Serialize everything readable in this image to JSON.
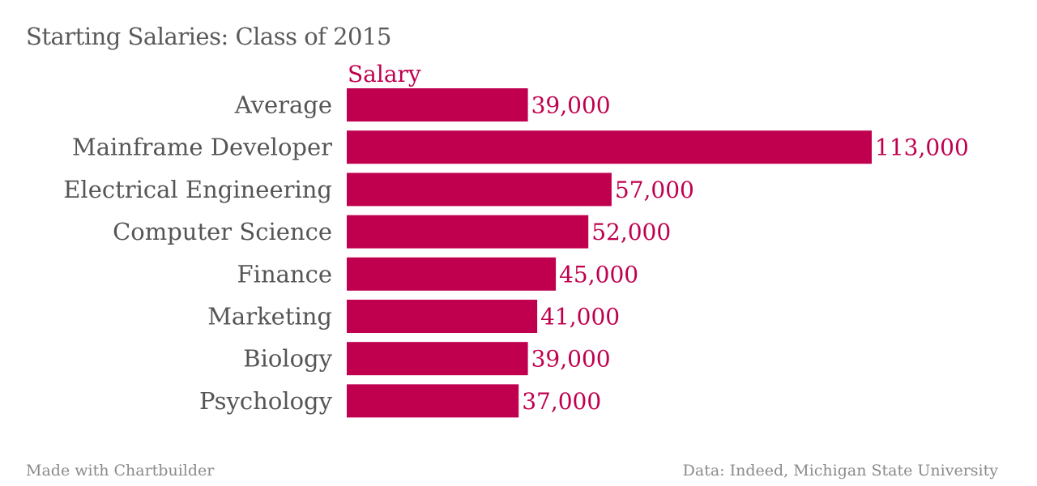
{
  "title": "Starting Salaries: Class of 2015",
  "footer": {
    "credit": "Made with Chartbuilder",
    "source": "Data: Indeed, Michigan State University"
  },
  "colors": {
    "bar": "#c0004f",
    "category_text": "#555555",
    "title_text": "#5a5a5a",
    "footer_text": "#8a8a8a"
  },
  "chart_data": {
    "type": "bar",
    "orientation": "horizontal",
    "title": "Starting Salaries: Class of 2015",
    "categories": [
      "Average",
      "Mainframe Developer",
      "Electrical Engineering",
      "Computer Science",
      "Finance",
      "Marketing",
      "Biology",
      "Psychology"
    ],
    "series": [
      {
        "name": "Salary",
        "values": [
          39000,
          113000,
          57000,
          52000,
          45000,
          41000,
          39000,
          37000
        ],
        "labels": [
          "39,000",
          "113,000",
          "57,000",
          "52,000",
          "45,000",
          "41,000",
          "39,000",
          "37,000"
        ]
      }
    ],
    "xlim": [
      0,
      113000
    ],
    "grid": false,
    "legend": "top-left"
  }
}
